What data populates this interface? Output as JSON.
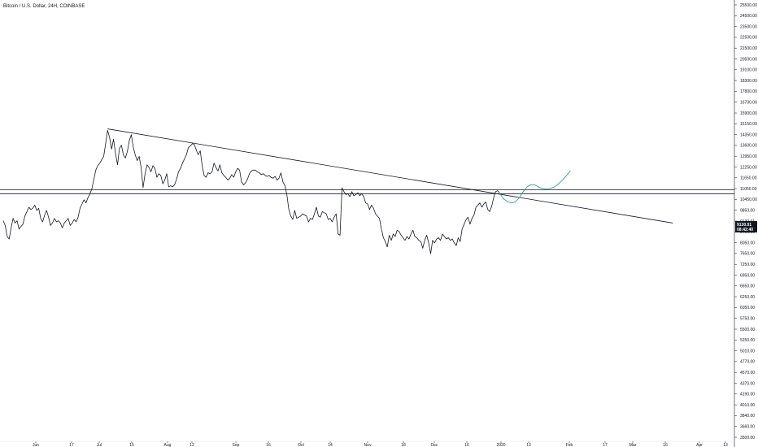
{
  "title": "Bitcoin / U.S. Dollar, 24H, COINBASE",
  "price_badge": {
    "price": "9130.01",
    "countdown": "08:42:40"
  },
  "colors": {
    "price_line": "#131722",
    "trendline": "#131722",
    "projection": "#26a69a",
    "badge_bg": "#131722",
    "axis_text": "#131722"
  },
  "chart_data": {
    "type": "line",
    "series": [
      {
        "values": [
          [
            0,
            8000
          ],
          [
            1,
            7800
          ],
          [
            2,
            7350
          ],
          [
            3,
            7250
          ],
          [
            4,
            7700
          ],
          [
            5,
            8100
          ],
          [
            6,
            7900
          ],
          [
            7,
            8000
          ],
          [
            8,
            7650
          ],
          [
            9,
            7750
          ],
          [
            10,
            7850
          ],
          [
            11,
            8200
          ],
          [
            12,
            8400
          ],
          [
            13,
            8600
          ],
          [
            14,
            8500
          ],
          [
            15,
            8550
          ],
          [
            16,
            8700
          ],
          [
            17,
            8450
          ],
          [
            18,
            8550
          ],
          [
            19,
            8100
          ],
          [
            20,
            7950
          ],
          [
            21,
            8250
          ],
          [
            22,
            8450
          ],
          [
            23,
            8150
          ],
          [
            24,
            7800
          ],
          [
            25,
            7900
          ],
          [
            26,
            8100
          ],
          [
            27,
            7950
          ],
          [
            28,
            8000
          ],
          [
            29,
            7900
          ],
          [
            30,
            7700
          ],
          [
            31,
            7900
          ],
          [
            32,
            8000
          ],
          [
            33,
            8100
          ],
          [
            34,
            7800
          ],
          [
            35,
            7900
          ],
          [
            36,
            8050
          ],
          [
            37,
            7950
          ],
          [
            38,
            8150
          ],
          [
            39,
            8550
          ],
          [
            40,
            8750
          ],
          [
            41,
            8950
          ],
          [
            42,
            8800
          ],
          [
            43,
            9050
          ],
          [
            44,
            9250
          ],
          [
            45,
            9500
          ],
          [
            46,
            10000
          ],
          [
            47,
            10500
          ],
          [
            48,
            10750
          ],
          [
            49,
            10900
          ],
          [
            50,
            11100
          ],
          [
            51,
            11300
          ],
          [
            52,
            12100
          ],
          [
            53,
            13000
          ],
          [
            54,
            12500
          ],
          [
            55,
            11750
          ],
          [
            56,
            12400
          ],
          [
            57,
            11500
          ],
          [
            58,
            10800
          ],
          [
            59,
            11800
          ],
          [
            60,
            12000
          ],
          [
            61,
            11400
          ],
          [
            62,
            11200
          ],
          [
            63,
            11600
          ],
          [
            64,
            12300
          ],
          [
            65,
            12700
          ],
          [
            66,
            11900
          ],
          [
            67,
            11400
          ],
          [
            68,
            11050
          ],
          [
            69,
            11300
          ],
          [
            70,
            10650
          ],
          [
            71,
            9550
          ],
          [
            72,
            10300
          ],
          [
            73,
            10800
          ],
          [
            74,
            10650
          ],
          [
            75,
            10400
          ],
          [
            76,
            10750
          ],
          [
            77,
            10600
          ],
          [
            78,
            10100
          ],
          [
            79,
            10300
          ],
          [
            80,
            10200
          ],
          [
            81,
            9750
          ],
          [
            82,
            9950
          ],
          [
            83,
            10300
          ],
          [
            84,
            9600
          ],
          [
            85,
            9650
          ],
          [
            86,
            9600
          ],
          [
            87,
            9700
          ],
          [
            88,
            10000
          ],
          [
            89,
            10400
          ],
          [
            90,
            10600
          ],
          [
            91,
            10900
          ],
          [
            92,
            11150
          ],
          [
            93,
            11400
          ],
          [
            94,
            11850
          ],
          [
            95,
            11950
          ],
          [
            96,
            12100
          ],
          [
            97,
            12050
          ],
          [
            98,
            11700
          ],
          [
            99,
            11400
          ],
          [
            100,
            11650
          ],
          [
            101,
            10750
          ],
          [
            102,
            10200
          ],
          [
            103,
            10100
          ],
          [
            104,
            10350
          ],
          [
            105,
            10300
          ],
          [
            106,
            10400
          ],
          [
            107,
            10900
          ],
          [
            108,
            10650
          ],
          [
            109,
            10450
          ],
          [
            110,
            10800
          ],
          [
            111,
            10350
          ],
          [
            112,
            10200
          ],
          [
            113,
            10100
          ],
          [
            114,
            9950
          ],
          [
            115,
            10050
          ],
          [
            116,
            10250
          ],
          [
            117,
            10100
          ],
          [
            118,
            10400
          ],
          [
            119,
            10600
          ],
          [
            120,
            10500
          ],
          [
            121,
            9850
          ],
          [
            122,
            9700
          ],
          [
            123,
            9800
          ],
          [
            124,
            10000
          ],
          [
            125,
            10300
          ],
          [
            126,
            10450
          ],
          [
            127,
            10500
          ],
          [
            128,
            10500
          ],
          [
            129,
            10400
          ],
          [
            130,
            10350
          ],
          [
            131,
            10250
          ],
          [
            132,
            10300
          ],
          [
            133,
            10200
          ],
          [
            134,
            10150
          ],
          [
            135,
            10200
          ],
          [
            136,
            10100
          ],
          [
            137,
            10050
          ],
          [
            138,
            10150
          ],
          [
            139,
            9950
          ],
          [
            140,
            10050
          ],
          [
            141,
            10350
          ],
          [
            142,
            9850
          ],
          [
            143,
            9650
          ],
          [
            144,
            9200
          ],
          [
            145,
            8500
          ],
          [
            146,
            8200
          ],
          [
            147,
            8050
          ],
          [
            148,
            8450
          ],
          [
            149,
            8100
          ],
          [
            150,
            8150
          ],
          [
            151,
            8200
          ],
          [
            152,
            8300
          ],
          [
            153,
            8250
          ],
          [
            154,
            8200
          ],
          [
            155,
            7950
          ],
          [
            156,
            8100
          ],
          [
            157,
            8050
          ],
          [
            158,
            8300
          ],
          [
            159,
            8600
          ],
          [
            160,
            8200
          ],
          [
            161,
            8150
          ],
          [
            162,
            8400
          ],
          [
            163,
            8350
          ],
          [
            164,
            8300
          ],
          [
            165,
            8050
          ],
          [
            166,
            8100
          ],
          [
            167,
            7950
          ],
          [
            168,
            8150
          ],
          [
            169,
            8300
          ],
          [
            170,
            7450
          ],
          [
            171,
            7400
          ],
          [
            172,
            9550
          ],
          [
            173,
            9350
          ],
          [
            174,
            9200
          ],
          [
            175,
            9250
          ],
          [
            176,
            9100
          ],
          [
            177,
            9350
          ],
          [
            178,
            9150
          ],
          [
            179,
            9200
          ],
          [
            180,
            9300
          ],
          [
            181,
            9150
          ],
          [
            182,
            9250
          ],
          [
            183,
            9100
          ],
          [
            184,
            8800
          ],
          [
            185,
            8750
          ],
          [
            186,
            8500
          ],
          [
            187,
            8700
          ],
          [
            188,
            8550
          ],
          [
            189,
            8300
          ],
          [
            190,
            8200
          ],
          [
            191,
            8100
          ],
          [
            192,
            7650
          ],
          [
            193,
            7300
          ],
          [
            194,
            7150
          ],
          [
            195,
            6950
          ],
          [
            196,
            7400
          ],
          [
            197,
            7200
          ],
          [
            198,
            7450
          ],
          [
            199,
            7350
          ],
          [
            200,
            7600
          ],
          [
            201,
            7550
          ],
          [
            202,
            7400
          ],
          [
            203,
            7300
          ],
          [
            204,
            7200
          ],
          [
            205,
            7350
          ],
          [
            206,
            7250
          ],
          [
            207,
            7450
          ],
          [
            208,
            7600
          ],
          [
            209,
            7350
          ],
          [
            210,
            7300
          ],
          [
            211,
            7200
          ],
          [
            212,
            7150
          ],
          [
            213,
            6900
          ],
          [
            214,
            7200
          ],
          [
            215,
            7400
          ],
          [
            216,
            7100
          ],
          [
            217,
            6700
          ],
          [
            218,
            7200
          ],
          [
            219,
            7100
          ],
          [
            220,
            7250
          ],
          [
            221,
            7300
          ],
          [
            222,
            7200
          ],
          [
            223,
            7450
          ],
          [
            224,
            7350
          ],
          [
            225,
            7250
          ],
          [
            226,
            7300
          ],
          [
            227,
            7200
          ],
          [
            228,
            7250
          ],
          [
            229,
            7100
          ],
          [
            230,
            7000
          ],
          [
            231,
            7300
          ],
          [
            232,
            7150
          ],
          [
            233,
            7650
          ],
          [
            234,
            7850
          ],
          [
            235,
            8050
          ],
          [
            236,
            8150
          ],
          [
            237,
            7850
          ],
          [
            238,
            8100
          ],
          [
            239,
            8250
          ],
          [
            240,
            8600
          ],
          [
            241,
            8700
          ],
          [
            242,
            8800
          ],
          [
            243,
            8600
          ],
          [
            244,
            8750
          ],
          [
            245,
            8850
          ],
          [
            246,
            8500
          ],
          [
            247,
            8400
          ],
          [
            248,
            8650
          ],
          [
            249,
            9050
          ],
          [
            250,
            9350
          ],
          [
            251,
            9400
          ],
          [
            252,
            9300
          ]
        ]
      },
      {
        "values": [
          [
            252,
            9280
          ],
          [
            254,
            9000
          ],
          [
            256,
            8860
          ],
          [
            258,
            8800
          ],
          [
            260,
            8860
          ],
          [
            262,
            9050
          ],
          [
            264,
            9350
          ],
          [
            266,
            9600
          ],
          [
            268,
            9710
          ],
          [
            270,
            9690
          ],
          [
            272,
            9580
          ],
          [
            274,
            9500
          ],
          [
            276,
            9480
          ],
          [
            278,
            9520
          ],
          [
            280,
            9600
          ],
          [
            282,
            9760
          ],
          [
            284,
            9950
          ],
          [
            286,
            10200
          ],
          [
            288,
            10460
          ]
        ]
      }
    ],
    "horizontal_levels": [
      9450,
      9250
    ],
    "trendline": {
      "from": [
        53,
        13100
      ],
      "to": [
        340,
        7900
      ]
    },
    "ylim": [
      2500,
      25500
    ],
    "y_axis_scale": "log",
    "y_ticks": [
      "25500.00",
      "24500.00",
      "23500.00",
      "22500.00",
      "21500.00",
      "20500.00",
      "19100.00",
      "18300.00",
      "17800.00",
      "16700.00",
      "15900.00",
      "15150.00",
      "14350.00",
      "13600.00",
      "12950.00",
      "12250.00",
      "11650.00",
      "11050.00",
      "10450.00",
      "9850.00",
      "9130.01",
      "8450.00",
      "8050.00",
      "7650.00",
      "7250.00",
      "6950.00",
      "6650.00",
      "6250.00",
      "6050.00",
      "5750.00",
      "5500.00",
      "5250.00",
      "5010.00",
      "4770.00",
      "4570.00",
      "4370.00",
      "4190.00",
      "4010.00",
      "3840.00",
      "3660.00",
      "3500.00"
    ],
    "x_ticks": [
      "Jun",
      "17",
      "Jul",
      "15",
      "Aug",
      "12",
      "Sep",
      "16",
      "Oct",
      "14",
      "Nov",
      "18",
      "Dec",
      "16",
      "2020",
      "13",
      "Feb",
      "17",
      "Mar",
      "16",
      "Apr",
      "13"
    ],
    "grid": false,
    "legend": "none"
  }
}
